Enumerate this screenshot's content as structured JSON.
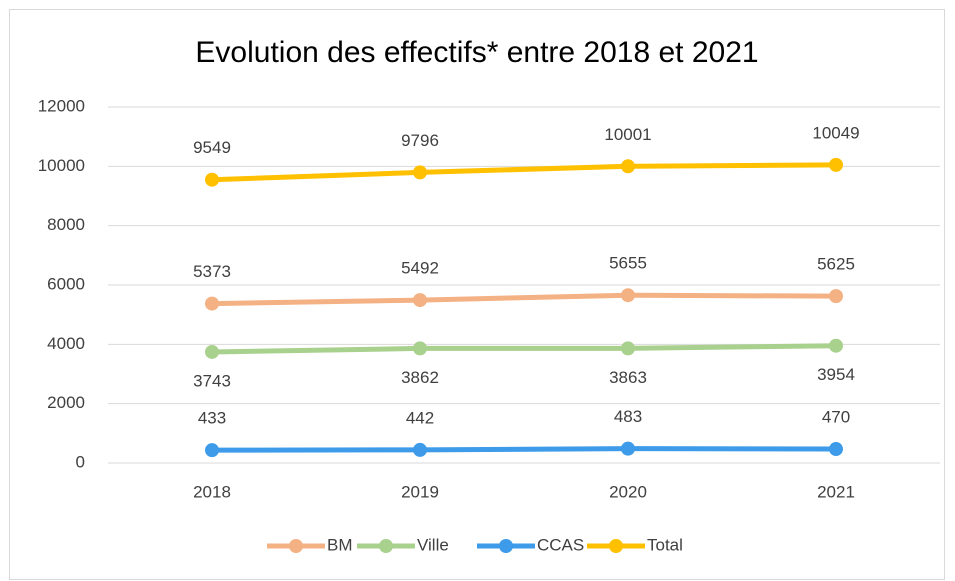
{
  "chart_data": {
    "type": "line",
    "title": "Evolution des effectifs* entre 2018 et 2021",
    "categories": [
      "2018",
      "2019",
      "2020",
      "2021"
    ],
    "series": [
      {
        "name": "BM",
        "color": "#f4b183",
        "values": [
          5373,
          5492,
          5655,
          5625
        ]
      },
      {
        "name": "Ville",
        "color": "#a9d18e",
        "values": [
          3743,
          3862,
          3863,
          3954
        ],
        "label_position": "below"
      },
      {
        "name": "CCAS",
        "color": "#3d9be9",
        "values": [
          433,
          442,
          483,
          470
        ]
      },
      {
        "name": "Total",
        "color": "#ffc000",
        "values": [
          9549,
          9796,
          10001,
          10049
        ]
      }
    ],
    "ylim": [
      0,
      12000
    ],
    "yticks": [
      0,
      2000,
      4000,
      6000,
      8000,
      10000,
      12000
    ],
    "grid": true,
    "legend": "bottom"
  }
}
